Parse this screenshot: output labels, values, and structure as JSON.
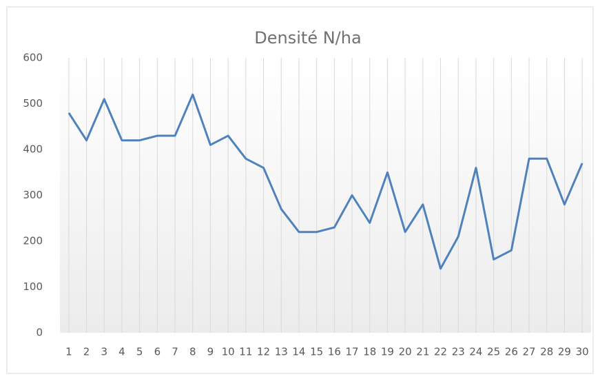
{
  "chart_data": {
    "type": "line",
    "title": "Densité N/ha",
    "categories": [
      1,
      2,
      3,
      4,
      5,
      6,
      7,
      8,
      9,
      10,
      11,
      12,
      13,
      14,
      15,
      16,
      17,
      18,
      19,
      20,
      21,
      22,
      23,
      24,
      25,
      26,
      27,
      28,
      29,
      30
    ],
    "series": [
      {
        "name": "Densité N/ha",
        "color": "#4f81bd",
        "values": [
          480,
          420,
          510,
          420,
          420,
          430,
          430,
          520,
          410,
          430,
          380,
          360,
          270,
          220,
          220,
          230,
          300,
          240,
          350,
          220,
          280,
          140,
          210,
          360,
          160,
          180,
          380,
          380,
          280,
          370
        ]
      }
    ],
    "ylim": [
      0,
      600
    ],
    "yticks": [
      0,
      100,
      200,
      300,
      400,
      500,
      600
    ],
    "grid": true
  }
}
